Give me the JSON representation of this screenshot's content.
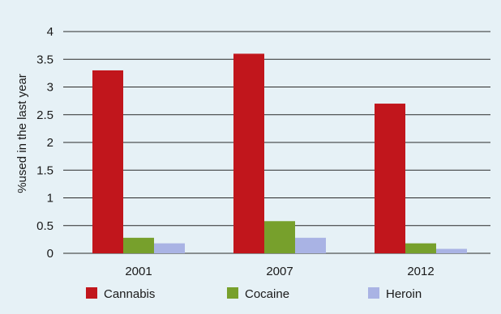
{
  "chart_data": {
    "type": "bar",
    "categories": [
      "2001",
      "2007",
      "2012"
    ],
    "series": [
      {
        "name": "Cannabis",
        "color": "#c1161c",
        "values": [
          3.3,
          3.6,
          2.7
        ]
      },
      {
        "name": "Cocaine",
        "color": "#77a02c",
        "values": [
          0.28,
          0.58,
          0.18
        ]
      },
      {
        "name": "Heroin",
        "color": "#a9b3e4",
        "values": [
          0.18,
          0.28,
          0.08
        ]
      }
    ],
    "title": "",
    "xlabel": "",
    "ylabel": "%used in the last year",
    "ylim": [
      0,
      4
    ],
    "yticks": [
      "0",
      "0.5",
      "1",
      "1.5",
      "2",
      "2.5",
      "3",
      "3.5",
      "4"
    ],
    "ytick_values": [
      0,
      0.5,
      1,
      1.5,
      2,
      2.5,
      3,
      3.5,
      4
    ],
    "grid": true,
    "legend_position": "bottom"
  }
}
